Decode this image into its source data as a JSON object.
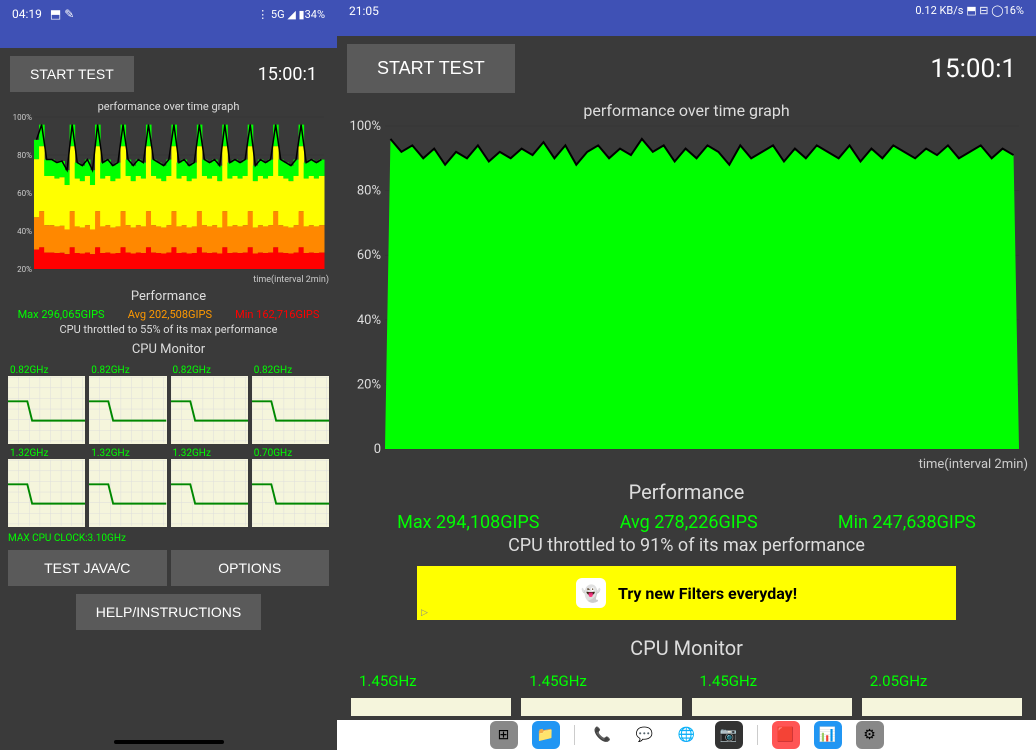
{
  "left": {
    "status": {
      "time": "04:19",
      "icons": "⬒ ✎",
      "right": "⋮ 5G ◢ ▮34%"
    },
    "start_button": "START TEST",
    "timer": "15:00:1",
    "chart": {
      "title": "performance over time graph",
      "y_labels": [
        "100%",
        "80%",
        "60%",
        "40%",
        "20%"
      ],
      "x_label": "time(interval 2min)",
      "ylim": [
        0,
        100
      ],
      "bg": "#3a3a3a",
      "line_color": "#000000",
      "colors": {
        "green": "#00ff00",
        "yellow": "#ffff00",
        "orange": "#ff8800",
        "red": "#ff0000"
      },
      "series": [
        85,
        95,
        72,
        72,
        70,
        71,
        65,
        95,
        70,
        68,
        72,
        65,
        95,
        70,
        72,
        68,
        70,
        95,
        72,
        68,
        72,
        70,
        95,
        72,
        70,
        68,
        72,
        95,
        70,
        72,
        68,
        70,
        95,
        72,
        70,
        72,
        68,
        95,
        70,
        72,
        70,
        72,
        95,
        68,
        72,
        70,
        72,
        95,
        72,
        70,
        68,
        72,
        95,
        70,
        72,
        70,
        72
      ]
    },
    "performance": {
      "title": "Performance",
      "max": "Max 296,065GIPS",
      "avg": "Avg 202,508GIPS",
      "min": "Min 162,716GIPS",
      "throttle": "CPU throttled to 55% of its max performance"
    },
    "cpu_monitor": {
      "title": "CPU Monitor",
      "cores_row1": [
        "0.82GHz",
        "0.82GHz",
        "0.82GHz",
        "0.82GHz"
      ],
      "cores_row2": [
        "1.32GHz",
        "1.32GHz",
        "1.32GHz",
        "0.70GHz"
      ],
      "max_clock": "MAX CPU CLOCK:3.10GHz",
      "graph_bg": "#f5f5dc",
      "line_color": "#008800"
    },
    "buttons": {
      "test": "TEST JAVA/C",
      "options": "OPTIONS",
      "help": "HELP/INSTRUCTIONS"
    }
  },
  "right": {
    "status": {
      "time": "21:05",
      "right": "0.12 KB/s ⬒ ⊟ ◯16%"
    },
    "start_button": "START TEST",
    "timer": "15:00:1",
    "chart": {
      "title": "performance over time graph",
      "y_labels": [
        "100%",
        "80%",
        "60%",
        "40%",
        "20%",
        "0"
      ],
      "x_label": "time(interval 2min)",
      "ylim": [
        0,
        100
      ],
      "bg": "#3a3a3a",
      "fill_color": "#00ff00",
      "line_color": "#000000",
      "series": [
        96,
        92,
        94,
        90,
        93,
        88,
        92,
        90,
        94,
        89,
        92,
        90,
        93,
        91,
        95,
        90,
        94,
        88,
        92,
        94,
        90,
        93,
        91,
        96,
        92,
        94,
        89,
        93,
        90,
        94,
        92,
        88,
        94,
        90,
        92,
        94,
        89,
        93,
        90,
        94,
        92,
        90,
        94,
        89,
        93,
        90,
        94,
        92,
        90,
        93,
        91,
        94,
        90,
        92,
        94,
        90,
        93,
        91
      ]
    },
    "performance": {
      "title": "Performance",
      "max": "Max 294,108GIPS",
      "avg": "Avg 278,226GIPS",
      "min": "Min 247,638GIPS",
      "throttle": "CPU throttled to 91% of its max performance"
    },
    "ad": {
      "text": "Try new Filters everyday!",
      "icon": "👻",
      "marker": "▷"
    },
    "cpu_monitor": {
      "title": "CPU Monitor",
      "cores": [
        "1.45GHz",
        "1.45GHz",
        "1.45GHz",
        "2.05GHz"
      ]
    },
    "nav_icons": [
      {
        "bg": "#888888",
        "glyph": "⊞"
      },
      {
        "bg": "#2196f3",
        "glyph": "📁"
      },
      {
        "bg": "#ffffff",
        "glyph": "📞"
      },
      {
        "bg": "#ffffff",
        "glyph": "💬"
      },
      {
        "bg": "#ffffff",
        "glyph": "🌐"
      },
      {
        "bg": "#333333",
        "glyph": "📷"
      },
      {
        "bg": "#ff5555",
        "glyph": "🟥"
      },
      {
        "bg": "#2196f3",
        "glyph": "📊"
      },
      {
        "bg": "#888888",
        "glyph": "⚙"
      }
    ]
  }
}
